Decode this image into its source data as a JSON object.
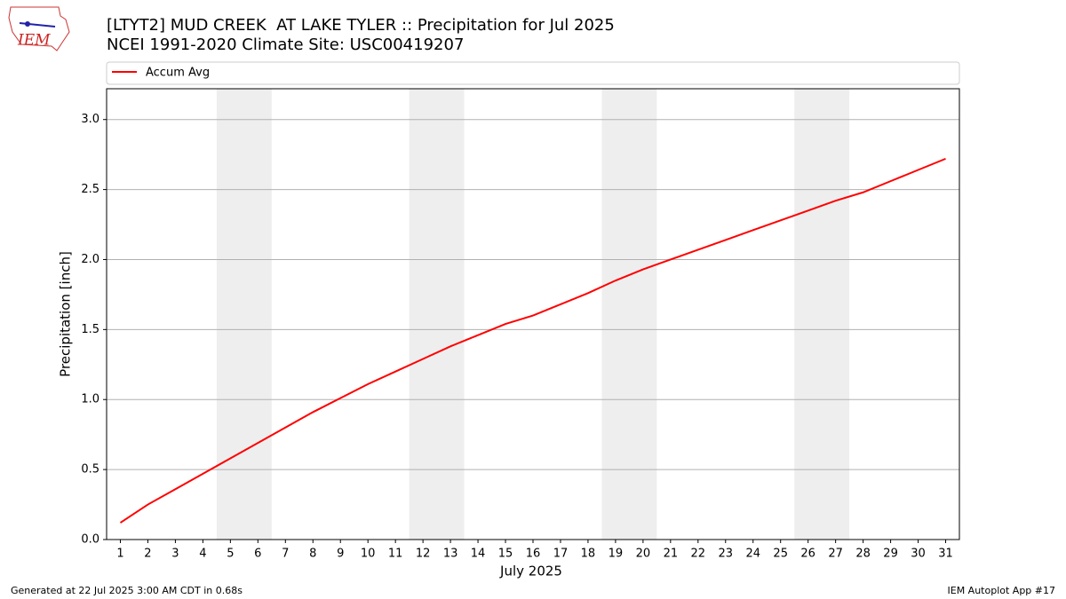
{
  "logo_text": "IEM",
  "chart_data": {
    "type": "line",
    "title": "[LTYT2] MUD CREEK  AT LAKE TYLER :: Precipitation for Jul 2025",
    "subtitle": "NCEI 1991-2020 Climate Site: USC00419207",
    "x_label": "July 2025",
    "y_label": "Precipitation [inch]",
    "x": [
      1,
      2,
      3,
      4,
      5,
      6,
      7,
      8,
      9,
      10,
      11,
      12,
      13,
      14,
      15,
      16,
      17,
      18,
      19,
      20,
      21,
      22,
      23,
      24,
      25,
      26,
      27,
      28,
      29,
      30,
      31
    ],
    "series": [
      {
        "name": "Accum Avg",
        "color": "#ff0000",
        "values": [
          0.12,
          0.25,
          0.36,
          0.47,
          0.58,
          0.69,
          0.8,
          0.91,
          1.01,
          1.11,
          1.2,
          1.29,
          1.38,
          1.46,
          1.54,
          1.6,
          1.68,
          1.76,
          1.85,
          1.93,
          2.0,
          2.07,
          2.14,
          2.21,
          2.28,
          2.35,
          2.42,
          2.48,
          2.56,
          2.64,
          2.72
        ]
      }
    ],
    "shaded_spans": [
      [
        4.5,
        6.5
      ],
      [
        11.5,
        13.5
      ],
      [
        18.5,
        20.5
      ],
      [
        25.5,
        27.5
      ]
    ],
    "shade_color": "#eeeeee",
    "xlim": [
      0.5,
      31.5
    ],
    "ylim": [
      0,
      3.22
    ],
    "xticks": [
      1,
      2,
      3,
      4,
      5,
      6,
      7,
      8,
      9,
      10,
      11,
      12,
      13,
      14,
      15,
      16,
      17,
      18,
      19,
      20,
      21,
      22,
      23,
      24,
      25,
      26,
      27,
      28,
      29,
      30,
      31
    ],
    "yticks": [
      {
        "value": 0,
        "label": "0.0"
      },
      {
        "value": 0.5,
        "label": "0.5"
      },
      {
        "value": 1,
        "label": "1.0"
      },
      {
        "value": 1.5,
        "label": "1.5"
      },
      {
        "value": 2,
        "label": "2.0"
      },
      {
        "value": 2.5,
        "label": "2.5"
      },
      {
        "value": 3,
        "label": "3.0"
      }
    ],
    "grid": true,
    "legend": "top"
  },
  "footer_left": "Generated at 22 Jul 2025 3:00 AM CDT in 0.68s",
  "footer_right": "IEM Autoplot App #17"
}
